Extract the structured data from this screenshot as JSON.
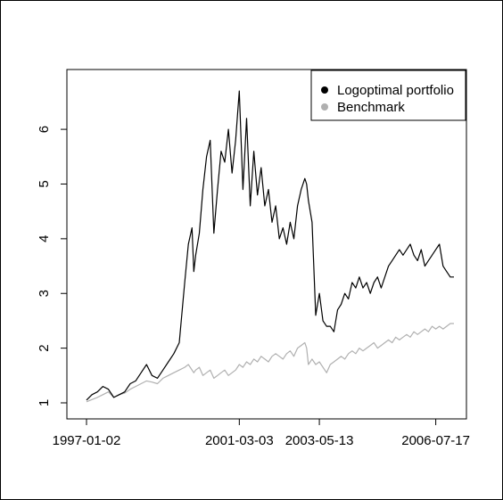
{
  "chart_data": {
    "type": "line",
    "title": "",
    "xlabel": "",
    "ylabel": "",
    "x_ticks": [
      "1997-01-02",
      "2001-03-03",
      "2003-05-13",
      "2006-07-17"
    ],
    "x_tick_positions": [
      0,
      4.2,
      6.4,
      9.6
    ],
    "xlim": [
      0,
      10.1
    ],
    "y_ticks": [
      1,
      2,
      3,
      4,
      5,
      6
    ],
    "ylim": [
      1,
      6.8
    ],
    "grid": false,
    "legend_position": "top-right",
    "series": [
      {
        "name": "Logoptimal portfolio",
        "color": "#000000",
        "x": [
          0.0,
          0.15,
          0.3,
          0.45,
          0.6,
          0.75,
          0.9,
          1.05,
          1.2,
          1.35,
          1.5,
          1.65,
          1.8,
          1.95,
          2.1,
          2.25,
          2.4,
          2.55,
          2.7,
          2.8,
          2.9,
          2.95,
          3.0,
          3.1,
          3.2,
          3.3,
          3.4,
          3.5,
          3.6,
          3.7,
          3.8,
          3.9,
          4.0,
          4.1,
          4.2,
          4.3,
          4.4,
          4.5,
          4.6,
          4.7,
          4.8,
          4.9,
          5.0,
          5.1,
          5.2,
          5.3,
          5.4,
          5.5,
          5.6,
          5.7,
          5.8,
          5.9,
          6.0,
          6.05,
          6.1,
          6.2,
          6.3,
          6.4,
          6.5,
          6.6,
          6.7,
          6.8,
          6.9,
          7.0,
          7.1,
          7.2,
          7.3,
          7.4,
          7.5,
          7.6,
          7.7,
          7.8,
          7.9,
          8.0,
          8.1,
          8.2,
          8.3,
          8.4,
          8.5,
          8.6,
          8.7,
          8.8,
          8.9,
          9.0,
          9.1,
          9.2,
          9.3,
          9.4,
          9.5,
          9.6,
          9.7,
          9.8,
          9.9,
          10.0,
          10.1
        ],
        "y": [
          1.05,
          1.15,
          1.2,
          1.3,
          1.25,
          1.1,
          1.15,
          1.2,
          1.35,
          1.4,
          1.55,
          1.7,
          1.5,
          1.45,
          1.6,
          1.75,
          1.9,
          2.1,
          3.2,
          3.9,
          4.2,
          3.4,
          3.7,
          4.1,
          4.9,
          5.5,
          5.8,
          4.1,
          4.9,
          5.6,
          5.4,
          6.0,
          5.2,
          5.8,
          6.7,
          4.9,
          6.2,
          4.6,
          5.6,
          4.8,
          5.3,
          4.6,
          4.9,
          4.3,
          4.6,
          4.0,
          4.2,
          3.9,
          4.3,
          4.0,
          4.6,
          4.9,
          5.1,
          5.0,
          4.7,
          4.3,
          2.6,
          3.0,
          2.5,
          2.4,
          2.4,
          2.3,
          2.7,
          2.8,
          3.0,
          2.9,
          3.2,
          3.1,
          3.3,
          3.1,
          3.2,
          3.0,
          3.2,
          3.3,
          3.1,
          3.3,
          3.5,
          3.6,
          3.7,
          3.8,
          3.7,
          3.8,
          3.9,
          3.7,
          3.6,
          3.8,
          3.5,
          3.6,
          3.7,
          3.8,
          3.9,
          3.5,
          3.4,
          3.3,
          3.3
        ]
      },
      {
        "name": "Benchmark",
        "color": "#b0b0b0",
        "x": [
          0.0,
          0.15,
          0.3,
          0.45,
          0.6,
          0.75,
          0.9,
          1.05,
          1.2,
          1.35,
          1.5,
          1.65,
          1.8,
          1.95,
          2.1,
          2.25,
          2.4,
          2.55,
          2.7,
          2.8,
          2.9,
          2.95,
          3.0,
          3.1,
          3.2,
          3.3,
          3.4,
          3.5,
          3.6,
          3.7,
          3.8,
          3.9,
          4.0,
          4.1,
          4.2,
          4.3,
          4.4,
          4.5,
          4.6,
          4.7,
          4.8,
          4.9,
          5.0,
          5.1,
          5.2,
          5.3,
          5.4,
          5.5,
          5.6,
          5.7,
          5.8,
          5.9,
          6.0,
          6.05,
          6.1,
          6.2,
          6.3,
          6.4,
          6.5,
          6.6,
          6.7,
          6.8,
          6.9,
          7.0,
          7.1,
          7.2,
          7.3,
          7.4,
          7.5,
          7.6,
          7.7,
          7.8,
          7.9,
          8.0,
          8.1,
          8.2,
          8.3,
          8.4,
          8.5,
          8.6,
          8.7,
          8.8,
          8.9,
          9.0,
          9.1,
          9.2,
          9.3,
          9.4,
          9.5,
          9.6,
          9.7,
          9.8,
          9.9,
          10.0,
          10.1
        ],
        "y": [
          1.02,
          1.06,
          1.1,
          1.15,
          1.2,
          1.1,
          1.15,
          1.18,
          1.25,
          1.3,
          1.35,
          1.4,
          1.38,
          1.35,
          1.45,
          1.5,
          1.55,
          1.6,
          1.65,
          1.7,
          1.6,
          1.55,
          1.6,
          1.65,
          1.5,
          1.55,
          1.6,
          1.45,
          1.5,
          1.55,
          1.6,
          1.5,
          1.55,
          1.6,
          1.7,
          1.65,
          1.75,
          1.7,
          1.8,
          1.75,
          1.85,
          1.8,
          1.75,
          1.85,
          1.9,
          1.85,
          1.8,
          1.9,
          1.95,
          1.85,
          2.0,
          2.05,
          2.1,
          2.0,
          1.7,
          1.8,
          1.7,
          1.75,
          1.65,
          1.55,
          1.7,
          1.75,
          1.8,
          1.85,
          1.8,
          1.9,
          1.95,
          1.9,
          2.0,
          1.95,
          2.0,
          2.05,
          2.1,
          2.0,
          2.05,
          2.1,
          2.15,
          2.1,
          2.2,
          2.15,
          2.2,
          2.25,
          2.2,
          2.3,
          2.25,
          2.3,
          2.35,
          2.3,
          2.4,
          2.35,
          2.4,
          2.35,
          2.4,
          2.45,
          2.45
        ]
      }
    ]
  }
}
